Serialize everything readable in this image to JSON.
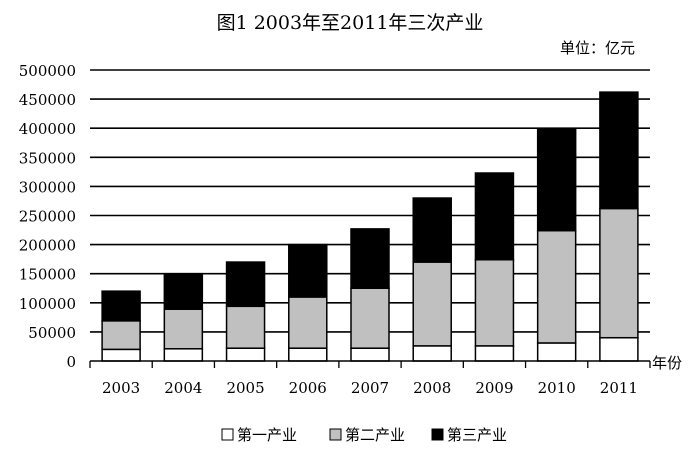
{
  "chart_data": {
    "type": "bar",
    "stacked": true,
    "title": "图1  2003年至2011年三次产业",
    "unit": "单位：亿元",
    "xlabel": "年份",
    "ylabel": "",
    "ylim": [
      0,
      500000
    ],
    "yticks": [
      "0",
      "50000",
      "100000",
      "150000",
      "200000",
      "250000",
      "300000",
      "350000",
      "400000",
      "450000",
      "500000"
    ],
    "grid": true,
    "legend_position": "bottom",
    "categories": [
      "2003",
      "2004",
      "2005",
      "2006",
      "2007",
      "2008",
      "2009",
      "2010",
      "2011"
    ],
    "series": [
      {
        "name": "第一产业",
        "color": "#ffffff",
        "values": [
          20000,
          21000,
          22000,
          22000,
          22000,
          26000,
          26000,
          31000,
          40000
        ]
      },
      {
        "name": "第二产业",
        "color": "#c0c0c0",
        "values": [
          49000,
          68000,
          72000,
          88000,
          103000,
          144000,
          148000,
          193000,
          222000
        ]
      },
      {
        "name": "第三产业",
        "color": "#000000",
        "values": [
          51000,
          61000,
          76000,
          90000,
          102000,
          110000,
          149000,
          175000,
          200000
        ]
      }
    ]
  }
}
